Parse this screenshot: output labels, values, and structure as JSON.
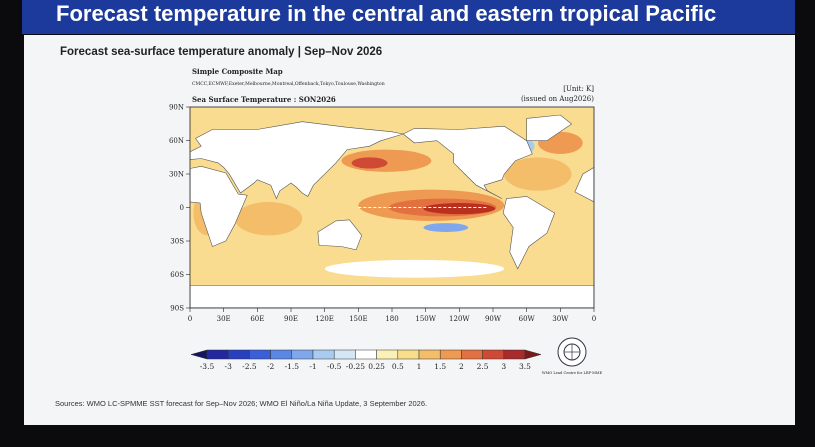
{
  "title": "Forecast temperature in the central and eastern tropical Pacific",
  "subtitle": "Forecast sea-surface temperature anomaly | Sep–Nov 2026",
  "map": {
    "heading": "Simple Composite Map",
    "models": "CMCC,ECMWF,Exeter,Melbourne,Montreal,Offenback,Tokyo,Toulouse,Washington",
    "unit": "[Unit: K]",
    "issued": "(issued on Aug2026)",
    "panel_title": "Sea Surface Temperature : SON2026",
    "lat_labels": [
      "90N",
      "60N",
      "30N",
      "0",
      "30S",
      "60S",
      "90S"
    ],
    "lon_labels": [
      "0",
      "30E",
      "60E",
      "90E",
      "120E",
      "150E",
      "180",
      "150W",
      "120W",
      "90W",
      "60W",
      "30W",
      "0"
    ]
  },
  "colorbar": {
    "labels": [
      "-3.5",
      "-3",
      "-2.5",
      "-2",
      "-1.5",
      "-1",
      "-0.5",
      "-0.25",
      "0.25",
      "0.5",
      "1",
      "1.5",
      "2",
      "2.5",
      "3",
      "3.5"
    ],
    "colors": [
      "#141460",
      "#2328a0",
      "#2840c0",
      "#3a5fd8",
      "#5a86e4",
      "#7fa8ec",
      "#a9cbf0",
      "#d5e6f5",
      "#ffffff",
      "#fbf0b8",
      "#f8de8a",
      "#f4bd6a",
      "#ee9a52",
      "#e27040",
      "#cf4a34",
      "#a82a2a",
      "#7a1a1a"
    ]
  },
  "logo_text": "WMO Lead Centre for LRF-MME",
  "sources": "Sources: WMO LC-SPMME SST forecast for Sep–Nov 2026; WMO El Niño/La Niña Update, 3 September 2026."
}
